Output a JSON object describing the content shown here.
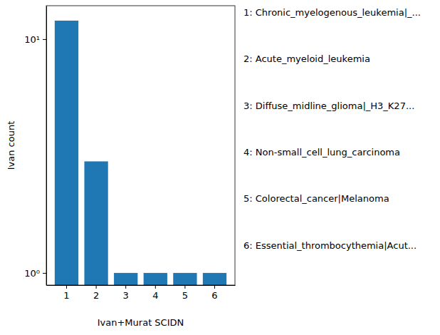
{
  "chart_data": {
    "type": "bar",
    "x_label": "Ivan+Murat SCIDN",
    "y_label": "Ivan count",
    "categories": [
      "1",
      "2",
      "3",
      "4",
      "5",
      "6"
    ],
    "values": [
      12,
      3,
      1,
      1,
      1,
      1
    ],
    "color": "#1f77b4",
    "log": "y",
    "ylim": [
      0.887,
      13.9
    ],
    "yticks": [
      {
        "value": 1,
        "label": "10⁰"
      },
      {
        "value": 10,
        "label": "10¹"
      }
    ],
    "annotations": [
      "1: Chronic_myelogenous_leukemia|_...",
      "2: Acute_myeloid_leukemia",
      "3: Diffuse_midline_glioma|_H3_K27...",
      "4: Non-small_cell_lung_carcinoma",
      "5: Colorectal_cancer|Melanoma",
      "6: Essential_thrombocythemia|Acut..."
    ]
  }
}
